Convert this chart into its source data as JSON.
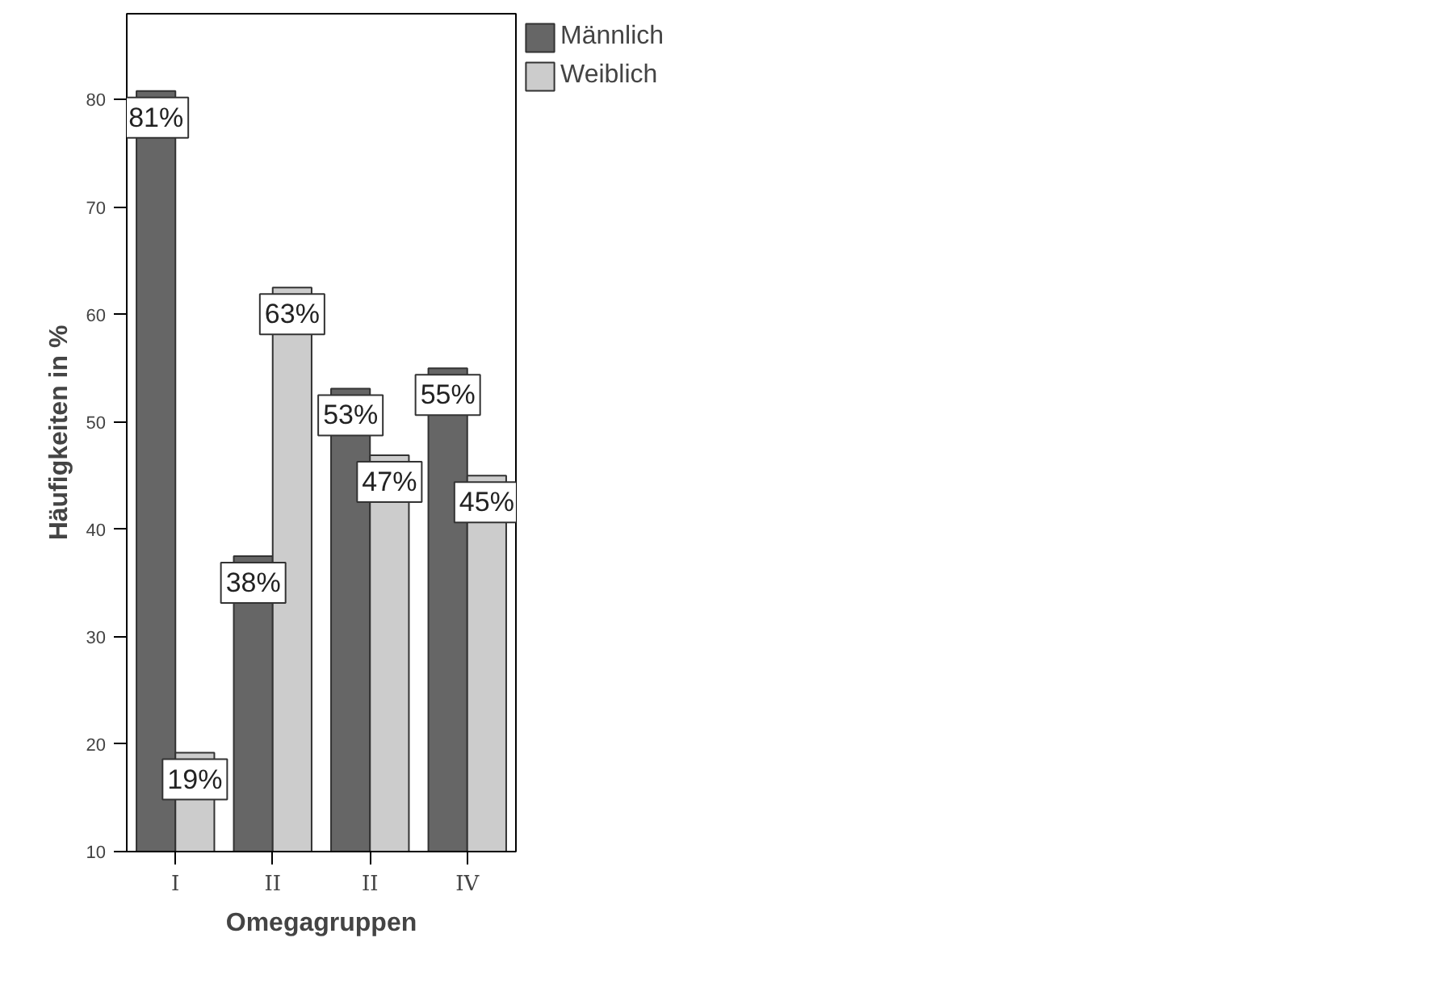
{
  "chart_data": {
    "type": "bar",
    "xlabel": "Omegagruppen",
    "ylabel": "Häufigkeiten in %",
    "categories": [
      "I",
      "II",
      "II",
      "IV"
    ],
    "series": [
      {
        "name": "Männlich",
        "color": "#666666",
        "values": [
          80.8,
          37.5,
          53.1,
          55.0
        ],
        "value_labels": [
          "81%",
          "38%",
          "53%",
          "55%"
        ]
      },
      {
        "name": "Weiblich",
        "color": "#cccccc",
        "values": [
          19.2,
          62.5,
          46.9,
          45.0
        ],
        "value_labels": [
          "19%",
          "63%",
          "47%",
          "45%"
        ]
      }
    ],
    "ylim": [
      10,
      88
    ],
    "yticks": [
      10,
      20,
      30,
      40,
      50,
      60,
      70,
      80
    ],
    "grid": false,
    "legend": "top right"
  }
}
